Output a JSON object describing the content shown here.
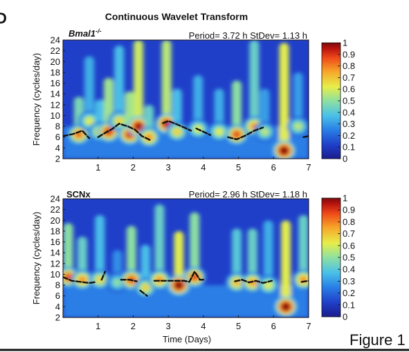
{
  "panel_letter": "D",
  "suptitle": "Continuous Wavelet Transform",
  "figure_label": "Figure 1",
  "colors": {
    "colormap": [
      "#1b1c8c",
      "#1f3fc9",
      "#2a7fe6",
      "#49c0e8",
      "#8fe0a0",
      "#e6ee4a",
      "#f7a72a",
      "#ee4a18",
      "#b8140f",
      "#7a0a0a"
    ],
    "ridge_line": "#111111"
  },
  "chart_data": [
    {
      "type": "heatmap",
      "title": "Bmal1-/-",
      "title_superscript": "-/-",
      "title_base": "Bmal1",
      "annotation": "Period= 3.72 h StDev= 1.13 h",
      "xlabel": "",
      "ylabel": "Frequency (cycles/day)",
      "xlim": [
        0,
        7
      ],
      "ylim": [
        2,
        24
      ],
      "x_ticks": [
        "1",
        "2",
        "3",
        "4",
        "5",
        "6",
        "7"
      ],
      "y_ticks": [
        "2",
        "4",
        "6",
        "8",
        "10",
        "12",
        "14",
        "16",
        "18",
        "20",
        "22",
        "24"
      ],
      "colorbar_ticks": [
        "0",
        "0.1",
        "0.2",
        "0.3",
        "0.4",
        "0.5",
        "0.6",
        "0.7",
        "0.8",
        "0.9",
        "1"
      ],
      "colorbar_range": [
        0,
        1
      ],
      "peaks": [
        {
          "t": 0.45,
          "f": 6.5,
          "amp": 0.75,
          "extend": 7
        },
        {
          "t": 0.75,
          "f": 9.0,
          "amp": 0.55,
          "extend": 12
        },
        {
          "t": 1.05,
          "f": 7.0,
          "amp": 0.6,
          "extend": 6
        },
        {
          "t": 1.3,
          "f": 7.0,
          "amp": 0.85,
          "extend": 10
        },
        {
          "t": 1.6,
          "f": 9.0,
          "amp": 0.6,
          "extend": 14
        },
        {
          "t": 1.9,
          "f": 6.5,
          "amp": 0.85,
          "extend": 8
        },
        {
          "t": 2.15,
          "f": 8.0,
          "amp": 0.95,
          "extend": 16
        },
        {
          "t": 2.45,
          "f": 6.0,
          "amp": 0.7,
          "extend": 6
        },
        {
          "t": 2.95,
          "f": 8.5,
          "amp": 0.9,
          "extend": 16
        },
        {
          "t": 3.25,
          "f": 7.0,
          "amp": 0.6,
          "extend": 8
        },
        {
          "t": 3.85,
          "f": 7.5,
          "amp": 0.55,
          "extend": 10
        },
        {
          "t": 4.45,
          "f": 7.0,
          "amp": 0.55,
          "extend": 8
        },
        {
          "t": 4.95,
          "f": 6.5,
          "amp": 0.8,
          "extend": 10
        },
        {
          "t": 5.45,
          "f": 8.0,
          "amp": 0.7,
          "extend": 16
        },
        {
          "t": 5.75,
          "f": 7.0,
          "amp": 0.5,
          "extend": 8
        },
        {
          "t": 6.3,
          "f": 3.5,
          "amp": 1.0,
          "extend": 20
        },
        {
          "t": 6.7,
          "f": 8.0,
          "amp": 0.5,
          "extend": 10
        }
      ],
      "ridge": [
        [
          [
            0.0,
            6.2
          ],
          [
            0.3,
            6.6
          ],
          [
            0.55,
            7.2
          ],
          [
            0.75,
            5.8
          ]
        ],
        [
          [
            1.0,
            6.0
          ],
          [
            1.2,
            6.8
          ],
          [
            1.4,
            7.5
          ],
          [
            1.6,
            8.5
          ],
          [
            1.85,
            8.0
          ],
          [
            2.05,
            7.4
          ],
          [
            2.25,
            6.2
          ],
          [
            2.5,
            5.4
          ]
        ],
        [
          [
            2.85,
            8.6
          ],
          [
            3.0,
            9.0
          ],
          [
            3.2,
            8.5
          ],
          [
            3.45,
            7.8
          ],
          [
            3.65,
            7.2
          ]
        ],
        [
          [
            3.8,
            7.6
          ],
          [
            4.0,
            7.0
          ],
          [
            4.2,
            6.4
          ]
        ],
        [
          [
            4.7,
            6.0
          ],
          [
            4.95,
            5.6
          ],
          [
            5.2,
            6.3
          ],
          [
            5.45,
            7.2
          ],
          [
            5.7,
            7.8
          ]
        ],
        [
          [
            6.85,
            6.0
          ],
          [
            7.0,
            6.2
          ]
        ]
      ]
    },
    {
      "type": "heatmap",
      "title": "SCNx",
      "annotation": "Period= 2.96 h StDev= 1.18 h",
      "xlabel": "Time (Days)",
      "ylabel": "Frequency (cycles/day)",
      "xlim": [
        0,
        7
      ],
      "ylim": [
        2,
        24
      ],
      "x_ticks": [
        "1",
        "2",
        "3",
        "4",
        "5",
        "6",
        "7"
      ],
      "y_ticks": [
        "2",
        "4",
        "6",
        "8",
        "10",
        "12",
        "14",
        "16",
        "18",
        "20",
        "22",
        "24"
      ],
      "colorbar_ticks": [
        "0",
        "0.1",
        "0.2",
        "0.3",
        "0.4",
        "0.5",
        "0.6",
        "0.7",
        "0.8",
        "0.9",
        "1"
      ],
      "colorbar_range": [
        0,
        1
      ],
      "peaks": [
        {
          "t": 0.15,
          "f": 9.5,
          "amp": 0.8,
          "extend": 10
        },
        {
          "t": 0.55,
          "f": 9.0,
          "amp": 0.7,
          "extend": 8
        },
        {
          "t": 1.05,
          "f": 9.0,
          "amp": 0.6,
          "extend": 12
        },
        {
          "t": 1.55,
          "f": 8.5,
          "amp": 0.45,
          "extend": 6
        },
        {
          "t": 1.95,
          "f": 9.0,
          "amp": 0.8,
          "extend": 10
        },
        {
          "t": 2.35,
          "f": 7.5,
          "amp": 0.6,
          "extend": 8
        },
        {
          "t": 2.75,
          "f": 9.0,
          "amp": 0.7,
          "extend": 14
        },
        {
          "t": 3.3,
          "f": 8.0,
          "amp": 1.0,
          "extend": 10
        },
        {
          "t": 3.75,
          "f": 9.5,
          "amp": 0.8,
          "extend": 12
        },
        {
          "t": 4.95,
          "f": 8.5,
          "amp": 0.65,
          "extend": 10
        },
        {
          "t": 5.4,
          "f": 8.5,
          "amp": 0.7,
          "extend": 10
        },
        {
          "t": 5.85,
          "f": 8.0,
          "amp": 0.55,
          "extend": 12
        },
        {
          "t": 6.35,
          "f": 4.0,
          "amp": 1.0,
          "extend": 16
        },
        {
          "t": 6.85,
          "f": 9.0,
          "amp": 0.7,
          "extend": 12
        }
      ],
      "ridge": [
        [
          [
            0.0,
            9.5
          ],
          [
            0.25,
            8.8
          ],
          [
            0.5,
            8.6
          ],
          [
            0.75,
            8.4
          ],
          [
            0.95,
            8.6
          ]
        ],
        [
          [
            1.1,
            9.0
          ],
          [
            1.2,
            10.5
          ]
        ],
        [
          [
            1.65,
            9.0
          ],
          [
            1.9,
            9.0
          ],
          [
            2.1,
            8.7
          ]
        ],
        [
          [
            2.2,
            7.0
          ],
          [
            2.4,
            6.0
          ]
        ],
        [
          [
            2.6,
            8.8
          ],
          [
            2.9,
            8.8
          ],
          [
            3.2,
            8.8
          ],
          [
            3.45,
            8.8
          ],
          [
            3.6,
            8.6
          ],
          [
            3.75,
            10.5
          ],
          [
            3.9,
            9.0
          ],
          [
            4.0,
            9.0
          ]
        ],
        [
          [
            4.9,
            8.7
          ],
          [
            5.1,
            9.0
          ],
          [
            5.3,
            8.5
          ],
          [
            5.5,
            8.8
          ],
          [
            5.7,
            8.4
          ],
          [
            5.95,
            8.8
          ]
        ],
        [
          [
            6.8,
            8.6
          ],
          [
            7.0,
            8.8
          ]
        ]
      ]
    }
  ]
}
